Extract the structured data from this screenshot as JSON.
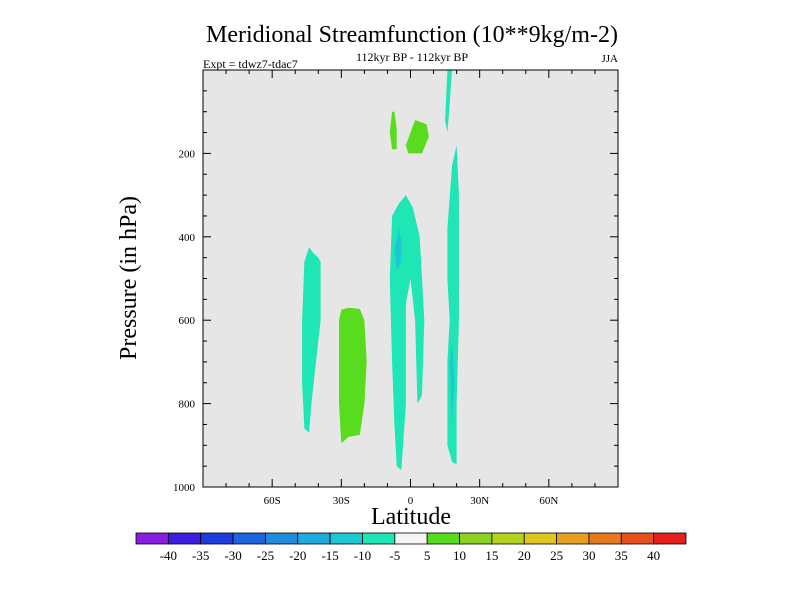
{
  "chart_data": {
    "type": "heatmap",
    "title": "Meridional Streamfunction (10**9kg/m-2)",
    "subtitle": "112kyr BP - 112kyr BP",
    "experiment": "Expt = tdwz7-tdac7",
    "season": "JJA",
    "xlabel": "Latitude",
    "ylabel": "Pressure (in hPa)",
    "xlim": [
      -90,
      90
    ],
    "ylim": [
      0,
      1000
    ],
    "y_inverted": true,
    "grid": false,
    "background_color": "#e6e6e6",
    "x_ticks": [
      {
        "value": -60,
        "label": "60S"
      },
      {
        "value": -30,
        "label": "30S"
      },
      {
        "value": 0,
        "label": "0"
      },
      {
        "value": 30,
        "label": "30N"
      },
      {
        "value": 60,
        "label": "60N"
      }
    ],
    "y_ticks": [
      {
        "value": 200,
        "label": "200"
      },
      {
        "value": 400,
        "label": "400"
      },
      {
        "value": 600,
        "label": "600"
      },
      {
        "value": 800,
        "label": "800"
      },
      {
        "value": 1000,
        "label": "1000"
      }
    ],
    "colorbar": {
      "labels": [
        "-40",
        "-35",
        "-30",
        "-25",
        "-20",
        "-15",
        "-10",
        "-5",
        "5",
        "10",
        "15",
        "20",
        "25",
        "30",
        "35",
        "40"
      ],
      "colors": [
        "#8a1ee0",
        "#3c1ee0",
        "#1e3cdc",
        "#1e64dc",
        "#1e8cdc",
        "#1eaadc",
        "#1ec8d2",
        "#1ee6b4",
        "#f5f5f5",
        "#5adc1e",
        "#8cd21e",
        "#b4d21e",
        "#dcc81e",
        "#e6a01e",
        "#e6781e",
        "#e6501e",
        "#e61e1e"
      ]
    },
    "regions": [
      {
        "name": "teal-band-40S",
        "value": "-10 to -5",
        "color": "#1ee6b4",
        "points": [
          [
            -44,
            425
          ],
          [
            -42,
            440
          ],
          [
            -40,
            450
          ],
          [
            -39,
            460
          ],
          [
            -39,
            600
          ],
          [
            -41,
            700
          ],
          [
            -43,
            800
          ],
          [
            -44,
            870
          ],
          [
            -46,
            860
          ],
          [
            -47,
            750
          ],
          [
            -47,
            600
          ],
          [
            -46,
            460
          ]
        ]
      },
      {
        "name": "green-lobe-30S",
        "value": "5 to 10",
        "color": "#5adc1e",
        "points": [
          [
            -30,
            575
          ],
          [
            -27,
            570
          ],
          [
            -22,
            573
          ],
          [
            -20,
            600
          ],
          [
            -19,
            700
          ],
          [
            -20,
            800
          ],
          [
            -22,
            875
          ],
          [
            -27,
            880
          ],
          [
            -30,
            895
          ],
          [
            -31,
            800
          ],
          [
            -31,
            650
          ],
          [
            -31,
            600
          ]
        ]
      },
      {
        "name": "teal-band-equator",
        "value": "-10 to -5",
        "color": "#1ee6b4",
        "points": [
          [
            -2,
            300
          ],
          [
            -5,
            320
          ],
          [
            -8,
            350
          ],
          [
            -9,
            500
          ],
          [
            -8,
            700
          ],
          [
            -7,
            850
          ],
          [
            -6,
            950
          ],
          [
            -4,
            960
          ],
          [
            -2,
            800
          ],
          [
            -2,
            560
          ],
          [
            0,
            500
          ],
          [
            2,
            600
          ],
          [
            3,
            800
          ],
          [
            5,
            780
          ],
          [
            6,
            600
          ],
          [
            4,
            400
          ],
          [
            1,
            330
          ]
        ]
      },
      {
        "name": "blue-core-equator",
        "value": "-15 to -10",
        "color": "#1ec8d2",
        "points": [
          [
            -5,
            380
          ],
          [
            -7,
            430
          ],
          [
            -6,
            480
          ],
          [
            -4,
            460
          ],
          [
            -4,
            410
          ]
        ]
      },
      {
        "name": "green-lobe-upper-left",
        "value": "5 to 10",
        "color": "#5adc1e",
        "points": [
          [
            -8,
            100
          ],
          [
            -9,
            150
          ],
          [
            -8,
            190
          ],
          [
            -6,
            190
          ],
          [
            -6,
            140
          ],
          [
            -7,
            100
          ]
        ]
      },
      {
        "name": "green-lobe-upper-right",
        "value": "5 to 10",
        "color": "#5adc1e",
        "points": [
          [
            -2,
            180
          ],
          [
            -1,
            200
          ],
          [
            5,
            200
          ],
          [
            8,
            160
          ],
          [
            7,
            130
          ],
          [
            2,
            120
          ]
        ]
      },
      {
        "name": "teal-band-20N-top",
        "value": "-10 to -5",
        "color": "#1ee6b4",
        "points": [
          [
            16,
            0
          ],
          [
            18,
            0
          ],
          [
            17,
            80
          ],
          [
            16,
            150
          ],
          [
            15,
            120
          ]
        ]
      },
      {
        "name": "teal-band-20N",
        "value": "-10 to -5",
        "color": "#1ee6b4",
        "points": [
          [
            18,
            230
          ],
          [
            20,
            180
          ],
          [
            21,
            300
          ],
          [
            21,
            600
          ],
          [
            20,
            800
          ],
          [
            20,
            945
          ],
          [
            18,
            940
          ],
          [
            16,
            900
          ],
          [
            16,
            700
          ],
          [
            17,
            600
          ],
          [
            16,
            500
          ],
          [
            16,
            380
          ]
        ]
      },
      {
        "name": "blue-core-20N",
        "value": "-15 to -10",
        "color": "#1ec8d2",
        "points": [
          [
            17,
            700
          ],
          [
            18,
            650
          ],
          [
            19,
            750
          ],
          [
            18,
            850
          ]
        ]
      }
    ]
  }
}
